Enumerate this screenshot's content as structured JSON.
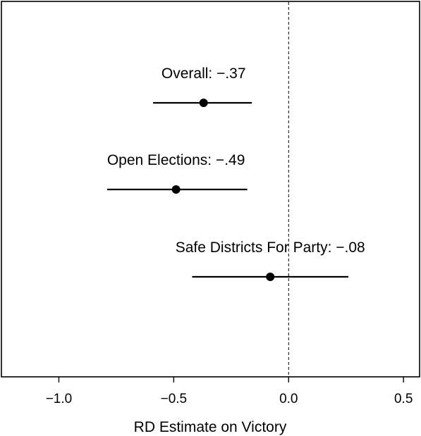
{
  "chart_data": {
    "type": "scatter",
    "title": "",
    "xlabel": "RD Estimate on Victory",
    "ylabel": "",
    "xlim": [
      -1.25,
      0.57
    ],
    "x_ticks": [
      -1.0,
      -0.5,
      0.0,
      0.5
    ],
    "x_tick_labels": [
      "−1.0",
      "−0.5",
      "0.0",
      "0.5"
    ],
    "reference_line": {
      "x": 0,
      "style": "dashed"
    },
    "grid": false,
    "legend": "none",
    "colors": {
      "marks": "#000000",
      "background": "#ffffff"
    },
    "points": [
      {
        "label": "Overall: −.37",
        "estimate": -0.37,
        "ci_low": -0.59,
        "ci_high": -0.16
      },
      {
        "label": "Open Elections: −.49",
        "estimate": -0.49,
        "ci_low": -0.79,
        "ci_high": -0.18
      },
      {
        "label": "Safe Districts For Party: −.08",
        "estimate": -0.08,
        "ci_low": -0.42,
        "ci_high": 0.26
      }
    ]
  }
}
